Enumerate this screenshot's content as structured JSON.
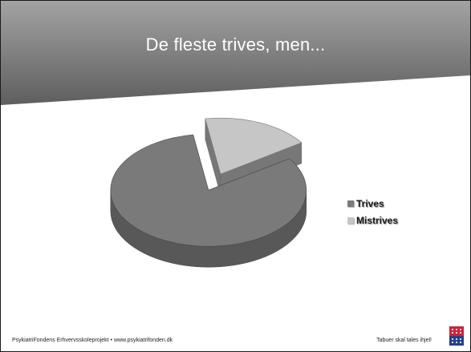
{
  "slide": {
    "title": "De fleste trives, men...",
    "footer_left": "PsykiatriFondens Erhvervsskoleprojekt • www.psykiatrifonden.dk",
    "footer_right": "Tabuer skal tales ihjel!"
  },
  "chart_data": {
    "type": "pie",
    "title": "",
    "categories": [
      "Trives",
      "Mistrives"
    ],
    "values": [
      82,
      18
    ],
    "colors": [
      "#7a7a7a",
      "#c6c6c6"
    ],
    "style": "3d-exploded",
    "legend": "right"
  },
  "colors": {
    "header_top": "#a3a3a3",
    "header_bottom": "#5e5e5e",
    "title_text": "#ffffff",
    "logo_red": "#c8253a",
    "logo_blue": "#23408e"
  }
}
